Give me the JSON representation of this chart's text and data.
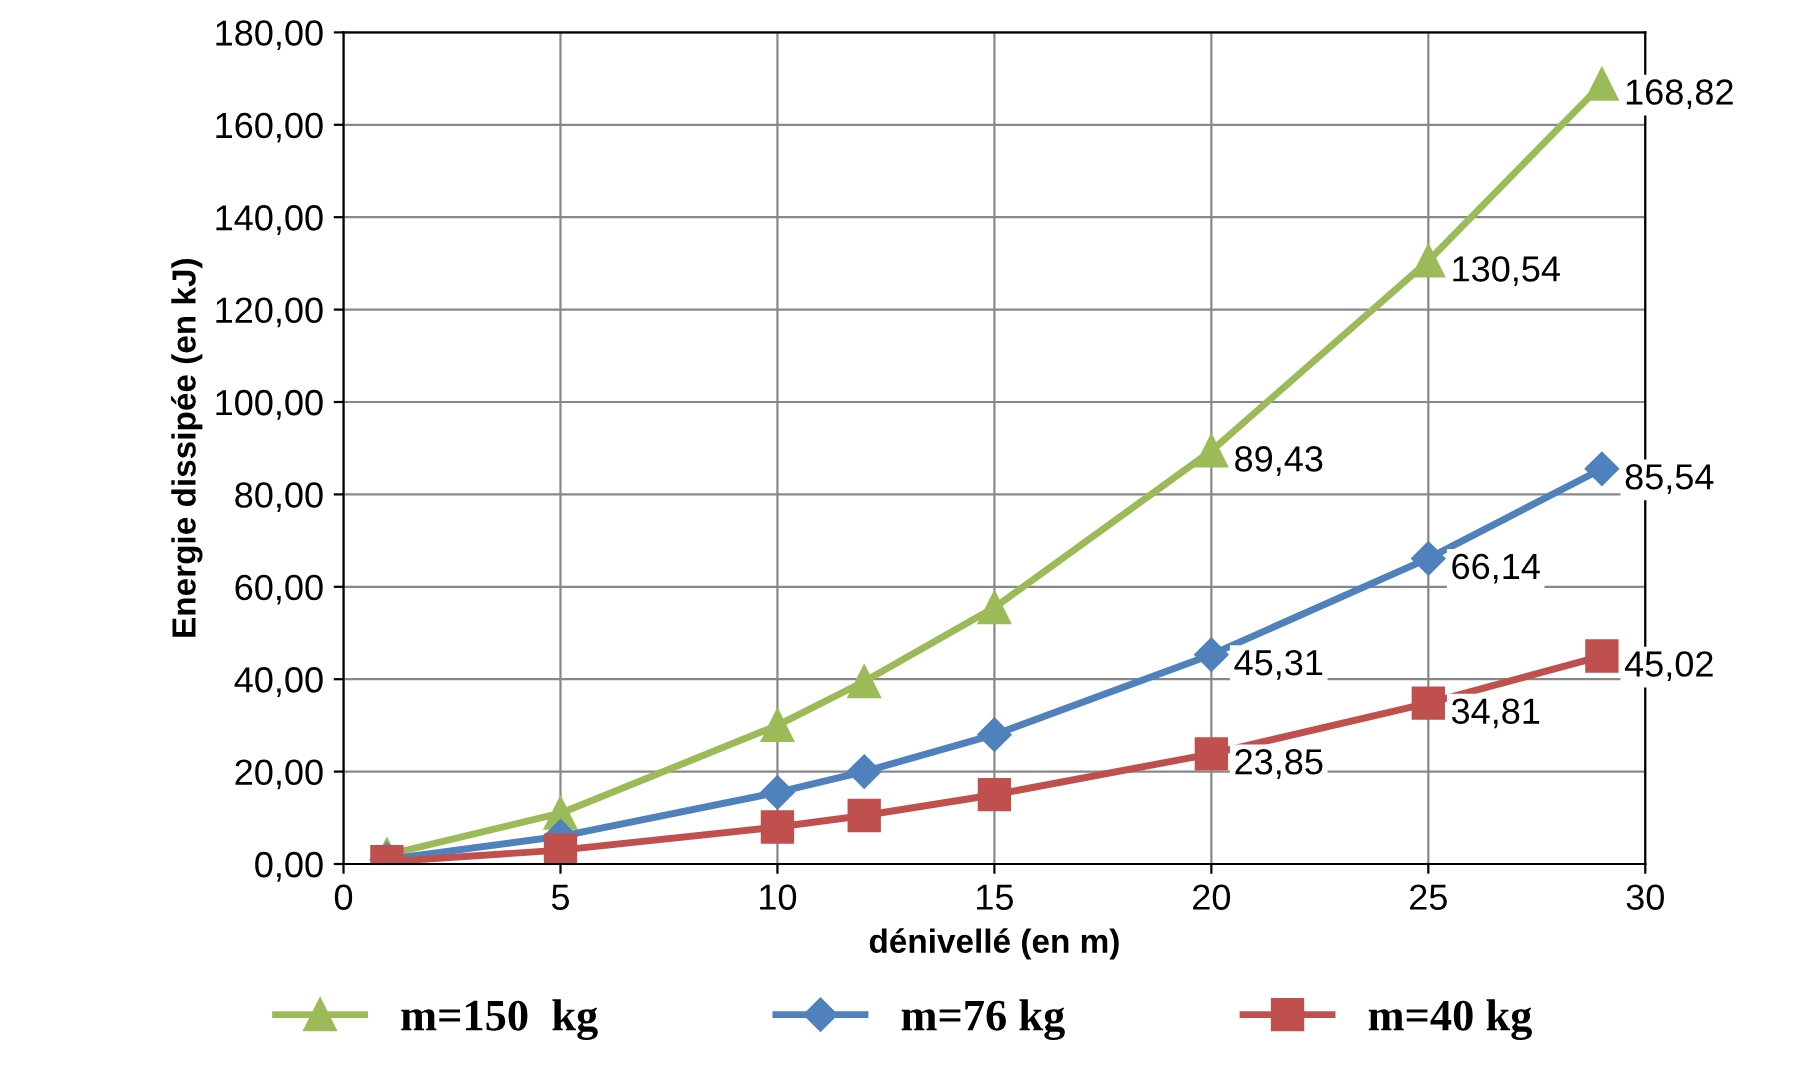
{
  "chart_data": {
    "type": "line",
    "xlabel": "dénivellé (en m)",
    "ylabel": "Energie dissipée (en kJ)",
    "x": [
      1,
      5,
      10,
      12,
      15,
      20,
      25,
      29
    ],
    "series": [
      {
        "name": "m=150  kg",
        "color": "#9bbb59",
        "marker": "triangle",
        "values": [
          2,
          11,
          30,
          39.5,
          55.5,
          89.43,
          130.54,
          168.82
        ],
        "value_labels": [
          null,
          null,
          null,
          null,
          null,
          "89,43",
          "130,54",
          "168,82"
        ]
      },
      {
        "name": "m=76 kg",
        "color": "#4f81bd",
        "marker": "diamond",
        "values": [
          1,
          6,
          15.5,
          20,
          28,
          45.31,
          66.14,
          85.54
        ],
        "value_labels": [
          null,
          null,
          null,
          null,
          null,
          "45,31",
          "66,14",
          "85,54"
        ]
      },
      {
        "name": "m=40 kg",
        "color": "#c0504d",
        "marker": "square",
        "values": [
          0.5,
          3,
          8,
          10.5,
          15,
          23.85,
          34.81,
          45.02
        ],
        "value_labels": [
          null,
          null,
          null,
          null,
          null,
          "23,85",
          "34,81",
          "45,02"
        ]
      }
    ],
    "xlim": [
      0,
      30
    ],
    "xticks": [
      0,
      5,
      10,
      15,
      20,
      25,
      30
    ],
    "ylim": [
      0,
      180
    ],
    "yticks": [
      {
        "value": 0,
        "label": "0,00"
      },
      {
        "value": 20,
        "label": "20,00"
      },
      {
        "value": 40,
        "label": "40,00"
      },
      {
        "value": 60,
        "label": "60,00"
      },
      {
        "value": 80,
        "label": "80,00"
      },
      {
        "value": 100,
        "label": "100,00"
      },
      {
        "value": 120,
        "label": "120,00"
      },
      {
        "value": 140,
        "label": "140,00"
      },
      {
        "value": 160,
        "label": "160,00"
      },
      {
        "value": 180,
        "label": "180,00"
      }
    ],
    "grid": true,
    "legend": "bottom",
    "line_style": "solid"
  }
}
